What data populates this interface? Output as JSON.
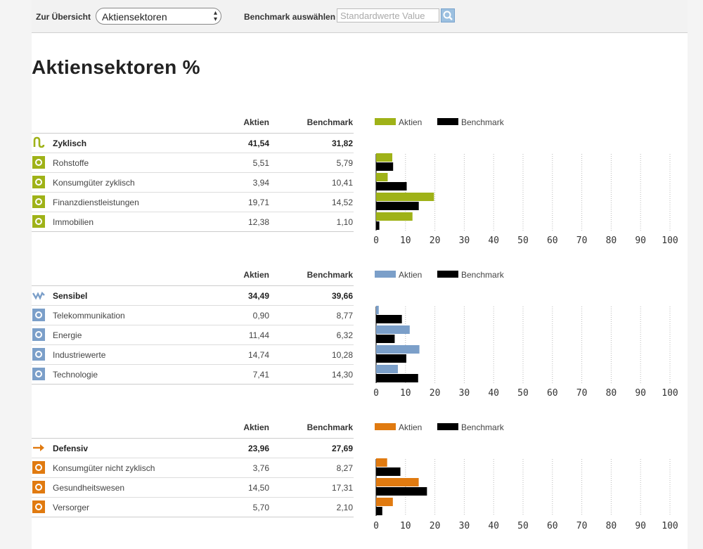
{
  "topbar": {
    "overview_label": "Zur Übersicht",
    "select_value": "Aktiensektoren",
    "benchmark_label": "Benchmark auswählen",
    "search_placeholder": "Standardwerte Value"
  },
  "title": "Aktiensektoren %",
  "colors": {
    "zyklisch": "#9fb218",
    "sensibel": "#7b9fc9",
    "defensiv": "#e07a10",
    "benchmark": "#000000"
  },
  "chart_data": [
    {
      "type": "bar",
      "orientation": "horizontal",
      "group": "Zyklisch",
      "group_aktien": "41,54",
      "group_benchmark": "31,82",
      "col_aktien": "Aktien",
      "col_benchmark": "Benchmark",
      "categories": [
        "Rohstoffe",
        "Konsumgüter zyklisch",
        "Finanzdienstleistungen",
        "Immobilien"
      ],
      "series": [
        {
          "name": "Aktien",
          "values": [
            5.51,
            3.94,
            19.71,
            12.38
          ],
          "labels": [
            "5,51",
            "3,94",
            "19,71",
            "12,38"
          ]
        },
        {
          "name": "Benchmark",
          "values": [
            5.79,
            10.41,
            14.52,
            1.1
          ],
          "labels": [
            "5,79",
            "10,41",
            "14,52",
            "1,10"
          ]
        }
      ],
      "icons": [
        "zyklisch-icon",
        "rohstoffe-icon",
        "konsumgueter-zyklisch-icon",
        "finanzdienstleistungen-icon",
        "immobilien-icon"
      ],
      "xlim": [
        0,
        100
      ],
      "xticks": [
        0,
        10,
        20,
        30,
        40,
        50,
        60,
        70,
        80,
        90,
        100
      ],
      "grid": true,
      "legend": "top"
    },
    {
      "type": "bar",
      "orientation": "horizontal",
      "group": "Sensibel",
      "group_aktien": "34,49",
      "group_benchmark": "39,66",
      "col_aktien": "Aktien",
      "col_benchmark": "Benchmark",
      "categories": [
        "Telekommunikation",
        "Energie",
        "Industriewerte",
        "Technologie"
      ],
      "series": [
        {
          "name": "Aktien",
          "values": [
            0.9,
            11.44,
            14.74,
            7.41
          ],
          "labels": [
            "0,90",
            "11,44",
            "14,74",
            "7,41"
          ]
        },
        {
          "name": "Benchmark",
          "values": [
            8.77,
            6.32,
            10.28,
            14.3
          ],
          "labels": [
            "8,77",
            "6,32",
            "10,28",
            "14,30"
          ]
        }
      ],
      "icons": [
        "sensibel-icon",
        "telekommunikation-icon",
        "energie-icon",
        "industriewerte-icon",
        "technologie-icon"
      ],
      "xlim": [
        0,
        100
      ],
      "xticks": [
        0,
        10,
        20,
        30,
        40,
        50,
        60,
        70,
        80,
        90,
        100
      ],
      "grid": true,
      "legend": "top"
    },
    {
      "type": "bar",
      "orientation": "horizontal",
      "group": "Defensiv",
      "group_aktien": "23,96",
      "group_benchmark": "27,69",
      "col_aktien": "Aktien",
      "col_benchmark": "Benchmark",
      "categories": [
        "Konsumgüter nicht zyklisch",
        "Gesundheitswesen",
        "Versorger"
      ],
      "series": [
        {
          "name": "Aktien",
          "values": [
            3.76,
            14.5,
            5.7
          ],
          "labels": [
            "3,76",
            "14,50",
            "5,70"
          ]
        },
        {
          "name": "Benchmark",
          "values": [
            8.27,
            17.31,
            2.1
          ],
          "labels": [
            "8,27",
            "17,31",
            "2,10"
          ]
        }
      ],
      "icons": [
        "defensiv-icon",
        "konsumgueter-nicht-zyklisch-icon",
        "gesundheitswesen-icon",
        "versorger-icon"
      ],
      "xlim": [
        0,
        100
      ],
      "xticks": [
        0,
        10,
        20,
        30,
        40,
        50,
        60,
        70,
        80,
        90,
        100
      ],
      "grid": true,
      "legend": "top"
    }
  ]
}
